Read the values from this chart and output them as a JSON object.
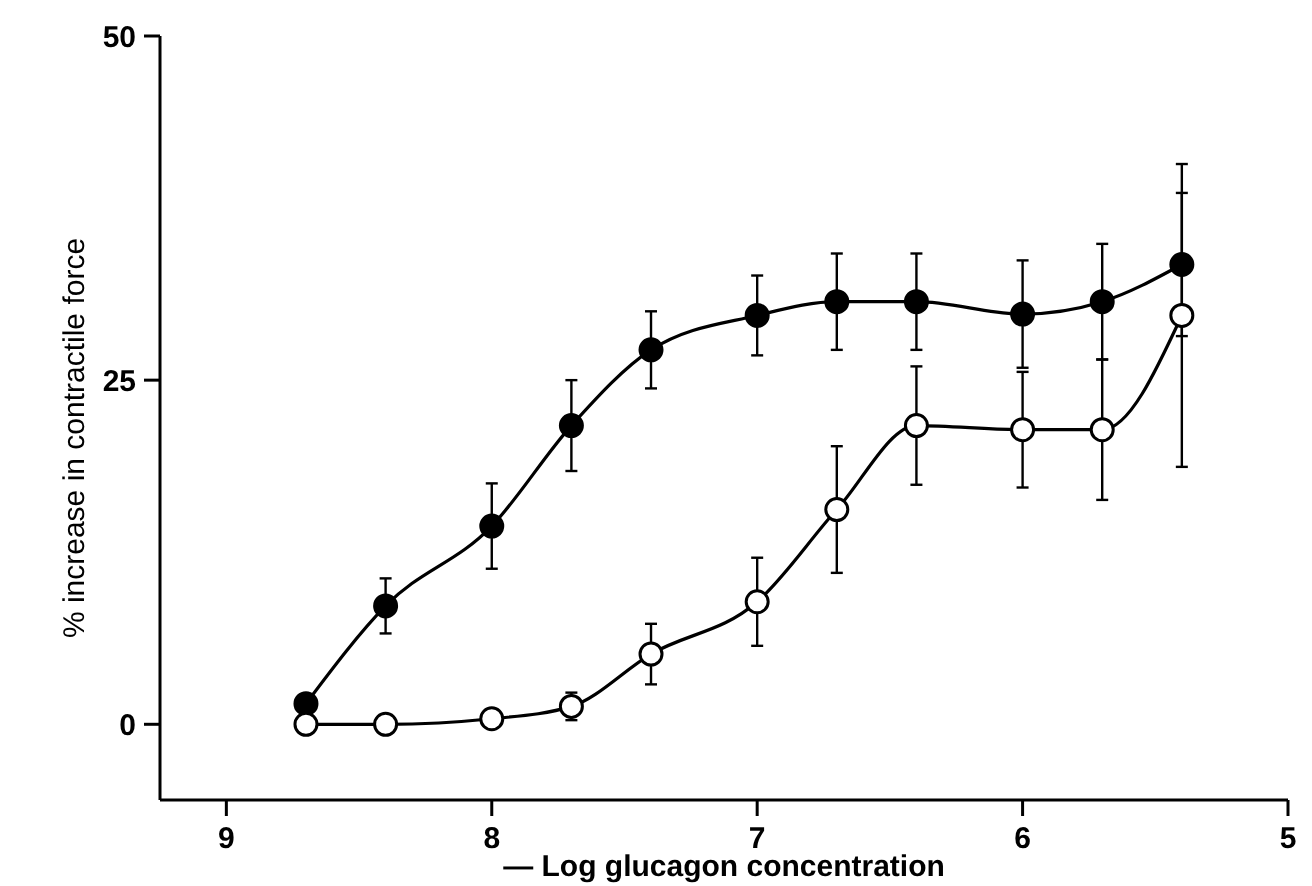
{
  "chart_data": {
    "type": "line",
    "xlabel": "— Log glucagon concentration",
    "ylabel": "% increase in contractile force",
    "xlim": [
      9.25,
      5
    ],
    "xticks": [
      9,
      8,
      7,
      6,
      5
    ],
    "ylim": [
      -5.5,
      50
    ],
    "yticks": [
      0,
      25,
      50
    ],
    "grid": false,
    "marker": "circle",
    "line_style": "solid",
    "series": [
      {
        "color": "#000000",
        "x": [
          8.7,
          8.4,
          8.0,
          7.7,
          7.4,
          7.0,
          6.7,
          6.4,
          6.0,
          5.7,
          5.4
        ],
        "values": [
          1.5,
          8.6,
          14.4,
          21.7,
          27.2,
          29.7,
          30.7,
          30.7,
          29.8,
          30.7,
          33.4
        ],
        "errors": [
          null,
          2,
          3.1,
          3.3,
          2.8,
          2.9,
          3.5,
          3.5,
          3.9,
          4.2,
          5.2
        ]
      },
      {
        "color": "#ffffff",
        "x": [
          8.7,
          8.4,
          8.0,
          7.7,
          7.4,
          7.0,
          6.7,
          6.4,
          6.0,
          5.7,
          5.4
        ],
        "values": [
          0,
          0,
          0.4,
          1.3,
          5.1,
          8.9,
          15.6,
          21.7,
          21.4,
          21.4,
          29.7
        ],
        "errors": [
          null,
          null,
          null,
          1,
          2.2,
          3.2,
          4.6,
          4.3,
          4.2,
          5.1,
          11
        ]
      }
    ]
  }
}
